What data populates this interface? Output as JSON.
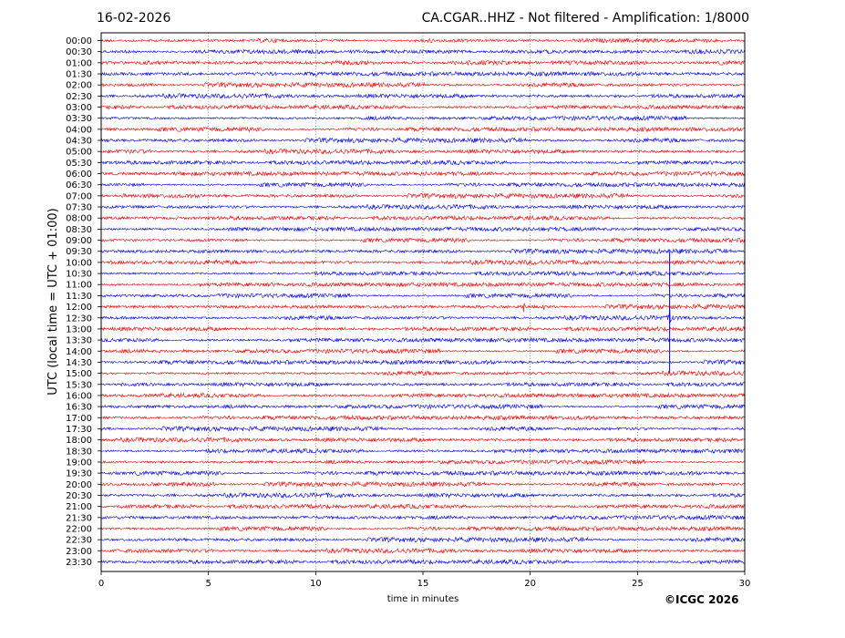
{
  "header": {
    "date": "16-02-2026",
    "title": "CA.CGAR..HHZ - Not filtered - Amplification: 1/8000"
  },
  "footer": {
    "copyright": "©ICGC 2026"
  },
  "colors": {
    "trace_a": "#ff0000",
    "trace_b": "#0000ff",
    "grid": "#808080",
    "axes": "#000000"
  },
  "chart_data": {
    "type": "line",
    "title": "CA.CGAR..HHZ - Not filtered - Amplification: 1/8000",
    "xlabel": "time in minutes",
    "ylabel": "UTC (local time = UTC + 01:00)",
    "xlim": [
      0,
      30
    ],
    "xticks": [
      0,
      5,
      10,
      15,
      20,
      25,
      30
    ],
    "grid": "vertical dotted at each x tick",
    "row_labels": [
      "00:00",
      "00:30",
      "01:00",
      "01:30",
      "02:00",
      "02:30",
      "03:00",
      "03:30",
      "04:00",
      "04:30",
      "05:00",
      "05:30",
      "06:00",
      "06:30",
      "07:00",
      "07:30",
      "08:00",
      "08:30",
      "09:00",
      "09:30",
      "10:00",
      "10:30",
      "11:00",
      "11:30",
      "12:00",
      "12:30",
      "13:00",
      "13:30",
      "14:00",
      "14:30",
      "15:00",
      "15:30",
      "16:00",
      "16:30",
      "17:00",
      "17:30",
      "18:00",
      "18:30",
      "19:00",
      "19:30",
      "20:00",
      "20:30",
      "21:00",
      "21:30",
      "22:00",
      "22:30",
      "23:00",
      "23:30"
    ],
    "trace_colors": "alternating red / blue starting with red at 00:00",
    "events": [
      {
        "row": "12:00",
        "x_min": 19.7,
        "amplitude": 5
      },
      {
        "row": "12:00",
        "x_min": 20.6,
        "amplitude": 4
      },
      {
        "row": "12:30",
        "x_min": 26.5,
        "amplitude": 18
      }
    ]
  }
}
